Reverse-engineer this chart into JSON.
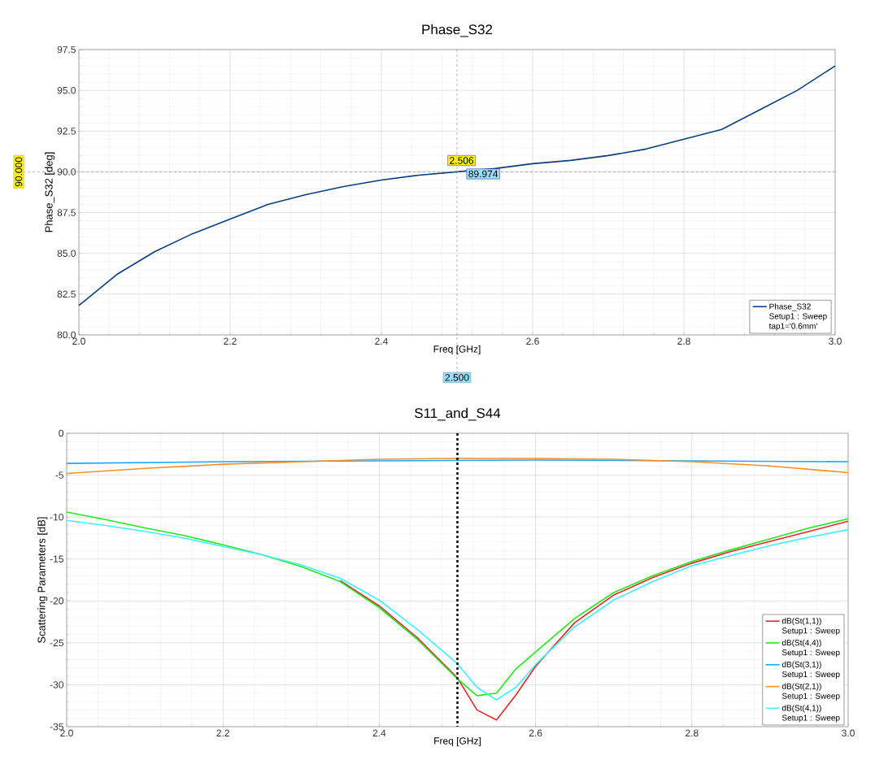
{
  "chart_data": [
    {
      "type": "line",
      "title": "Phase_S32",
      "xlabel": "Freq [GHz]",
      "ylabel": "Phase_S32 [deg]",
      "x": [
        2.0,
        2.05,
        2.1,
        2.15,
        2.2,
        2.25,
        2.3,
        2.35,
        2.4,
        2.45,
        2.5,
        2.55,
        2.6,
        2.65,
        2.7,
        2.75,
        2.8,
        2.85,
        2.9,
        2.95,
        3.0
      ],
      "series": [
        {
          "name": "Phase_S32",
          "color": "#0b3d78",
          "values": [
            81.8,
            83.7,
            85.1,
            86.2,
            87.1,
            88.0,
            88.6,
            89.1,
            89.5,
            89.8,
            90.0,
            90.2,
            90.5,
            90.7,
            91.0,
            91.4,
            92.0,
            92.6,
            93.8,
            95.0,
            96.5
          ]
        }
      ],
      "xlim": [
        2.0,
        3.0
      ],
      "ylim": [
        80,
        97.5
      ],
      "xticks": [
        {
          "value": 2.0,
          "label": "2.0"
        },
        {
          "value": 2.2,
          "label": "2.2"
        },
        {
          "value": 2.4,
          "label": "2.4"
        },
        {
          "value": 2.6,
          "label": "2.6"
        },
        {
          "value": 2.8,
          "label": "2.8"
        },
        {
          "value": 3.0,
          "label": "3.0"
        }
      ],
      "yticks": [
        {
          "value": 80,
          "label": "80.0"
        },
        {
          "value": 82.5,
          "label": "82.5"
        },
        {
          "value": 85,
          "label": "85.0"
        },
        {
          "value": 87.5,
          "label": "87.5"
        },
        {
          "value": 90,
          "label": "90.0"
        },
        {
          "value": 92.5,
          "label": "92.5"
        },
        {
          "value": 95,
          "label": "95.0"
        },
        {
          "value": 97.5,
          "label": "97.5"
        }
      ],
      "ref_lines": [
        {
          "axis": "y",
          "value": 90,
          "label": "90.000",
          "color": "#888888",
          "line_style": "dashed"
        },
        {
          "axis": "x",
          "value": 2.5,
          "label": "2.500",
          "color": "#888888",
          "line_style": "dashed"
        }
      ],
      "annotations": [
        {
          "text": "2.506",
          "x": 2.506,
          "y": 89.974
        },
        {
          "text": "89.974",
          "x": 2.506,
          "y": 89.974
        },
        "Setup1 : Sweep",
        "tap1='0.6mm'"
      ],
      "grid": true,
      "legend": "bottom right"
    },
    {
      "type": "line",
      "title": "S11_and_S44",
      "xlabel": "Freq [GHz]",
      "ylabel": "Scattering Parameters [dB]",
      "x": [
        2.0,
        2.05,
        2.1,
        2.15,
        2.2,
        2.25,
        2.3,
        2.35,
        2.4,
        2.45,
        2.5,
        2.525,
        2.55,
        2.575,
        2.6,
        2.65,
        2.7,
        2.75,
        2.8,
        2.85,
        2.9,
        2.95,
        3.0
      ],
      "series": [
        {
          "name": "dB(St(1,1))",
          "color": "#e8262a",
          "values": [
            null,
            null,
            null,
            null,
            null,
            null,
            null,
            -17.6,
            -20.6,
            -24.5,
            -29.2,
            -33.0,
            -34.2,
            -31.2,
            -27.8,
            -22.6,
            -19.3,
            -17.2,
            -15.5,
            -14.1,
            -12.9,
            -11.7,
            -10.5
          ]
        },
        {
          "name": "dB(St(4,4))",
          "color": "#22e61e",
          "values": [
            -9.4,
            -10.3,
            -11.3,
            -12.2,
            -13.3,
            -14.5,
            -15.9,
            -17.7,
            -20.8,
            -24.7,
            -29.3,
            -31.3,
            -31.0,
            -28.1,
            -26.1,
            -22.1,
            -19.0,
            -17.0,
            -15.3,
            -13.9,
            -12.6,
            -11.3,
            -10.2
          ]
        },
        {
          "name": "dB(St(3,1))",
          "color": "#1ea7ff",
          "x": [
            2.0,
            2.2,
            2.4,
            2.6,
            2.8,
            3.0
          ],
          "values": [
            -3.6,
            -3.4,
            -3.3,
            -3.2,
            -3.3,
            -3.4
          ]
        },
        {
          "name": "dB(St(2,1))",
          "color": "#f5902a",
          "x": [
            2.0,
            2.1,
            2.2,
            2.3,
            2.4,
            2.5,
            2.6,
            2.7,
            2.8,
            2.9,
            3.0
          ],
          "values": [
            -4.8,
            -4.2,
            -3.7,
            -3.4,
            -3.1,
            -3.0,
            -3.0,
            -3.1,
            -3.4,
            -3.9,
            -4.7
          ]
        },
        {
          "name": "dB(St(4,1))",
          "color": "#40f0ff",
          "values": [
            -10.4,
            -11.0,
            -11.7,
            -12.5,
            -13.5,
            -14.5,
            -15.7,
            -17.3,
            -19.9,
            -23.5,
            -27.5,
            -30.3,
            -31.8,
            -30.3,
            -27.6,
            -23.1,
            -19.9,
            -17.7,
            -15.8,
            -14.6,
            -13.4,
            -12.4,
            -11.5
          ]
        }
      ],
      "xlim": [
        2.0,
        3.0
      ],
      "ylim": [
        -35,
        0
      ],
      "xticks": [
        {
          "value": 2.0,
          "label": "2.0"
        },
        {
          "value": 2.2,
          "label": "2.2"
        },
        {
          "value": 2.4,
          "label": "2.4"
        },
        {
          "value": 2.6,
          "label": "2.6"
        },
        {
          "value": 2.8,
          "label": "2.8"
        },
        {
          "value": 3.0,
          "label": "3.0"
        }
      ],
      "yticks": [
        -35,
        -30,
        -25,
        -20,
        -15,
        -10,
        -5,
        0
      ],
      "ref_lines": [
        {
          "axis": "x",
          "value": 2.5,
          "color": "#000000",
          "line_style": "dashed"
        }
      ],
      "annotations": [
        "Setup1 : Sweep",
        "Setup1 : Sweep",
        "Setup1 : Sweep",
        "Setup1 : Sweep",
        "Setup1 : Sweep"
      ],
      "grid": true,
      "legend": "bottom right"
    }
  ]
}
